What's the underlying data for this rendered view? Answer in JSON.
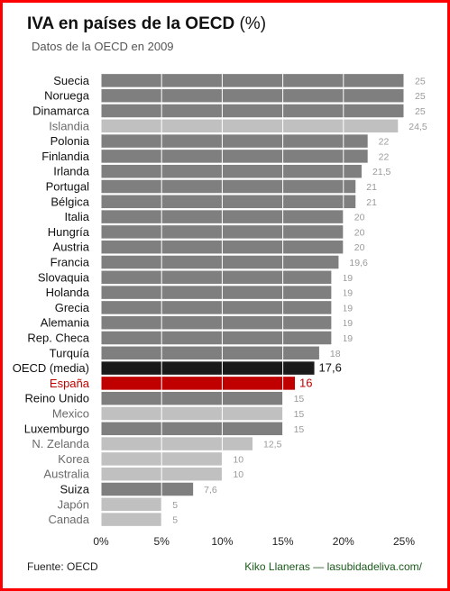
{
  "header": {
    "title": "IVA en países de la OECD",
    "title_unit": "(%)",
    "subtitle": "Datos de la OECD en 2009"
  },
  "footer": {
    "source": "Fuente: OECD",
    "credit": "Kiko Llaneras — lasubidadeliva.com/"
  },
  "colors": {
    "dark_bar": "#7f7f7f",
    "light_bar": "#c0c0c0",
    "highlight_bar": "#c00000",
    "average_bar": "#1a1a1a",
    "frame": "#ff0000"
  },
  "chart_data": {
    "type": "bar",
    "orientation": "horizontal",
    "title": "IVA en países de la OECD (%)",
    "subtitle": "Datos de la OECD en 2009",
    "categories": [
      "Suecia",
      "Noruega",
      "Dinamarca",
      "Islandia",
      "Polonia",
      "Finlandia",
      "Irlanda",
      "Portugal",
      "Bélgica",
      "Italia",
      "Hungría",
      "Austria",
      "Francia",
      "Slovaquia",
      "Holanda",
      "Grecia",
      "Alemania",
      "Rep. Checa",
      "Turquía",
      "OECD (media)",
      "España",
      "Reino Unido",
      "Mexico",
      "Luxemburgo",
      "N. Zelanda",
      "Korea",
      "Australia",
      "Suiza",
      "Japón",
      "Canada"
    ],
    "values": [
      25,
      25,
      25,
      24.5,
      22,
      22,
      21.5,
      21,
      21,
      20,
      20,
      20,
      19.6,
      19,
      19,
      19,
      19,
      19,
      18,
      17.6,
      16,
      15,
      15,
      15,
      12.5,
      10,
      10,
      7.6,
      5,
      5
    ],
    "value_labels": [
      "25",
      "25",
      "25",
      "24,5",
      "22",
      "22",
      "21,5",
      "21",
      "21",
      "20",
      "20",
      "20",
      "19,6",
      "19",
      "19",
      "19",
      "19",
      "19",
      "18",
      "17,6",
      "16",
      "15",
      "15",
      "15",
      "12,5",
      "10",
      "10",
      "7,6",
      "5",
      "5"
    ],
    "styles": [
      "dark",
      "dark",
      "dark",
      "light",
      "dark",
      "dark",
      "dark",
      "dark",
      "dark",
      "dark",
      "dark",
      "dark",
      "dark",
      "dark",
      "dark",
      "dark",
      "dark",
      "dark",
      "dark",
      "average",
      "highlight",
      "dark",
      "light",
      "dark",
      "light",
      "light",
      "light",
      "dark",
      "light",
      "light"
    ],
    "xticks": [
      "0%",
      "5%",
      "10%",
      "15%",
      "20%",
      "25%"
    ],
    "xtick_values": [
      0,
      5,
      10,
      15,
      20,
      25
    ],
    "xlim": [
      0,
      25
    ],
    "xlabel": "",
    "ylabel": "",
    "grid": "vertical"
  }
}
